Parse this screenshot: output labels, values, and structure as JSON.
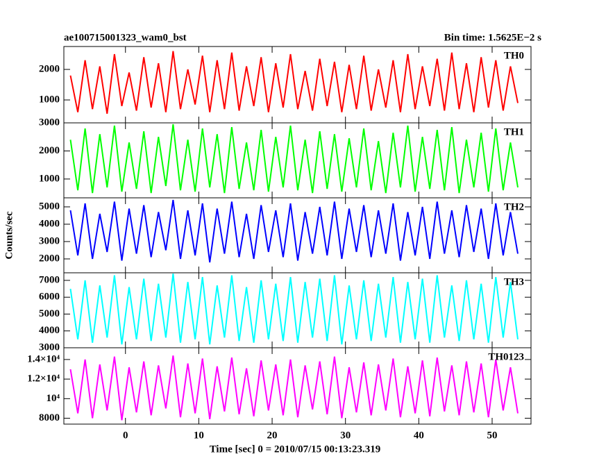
{
  "chart_data": {
    "type": "line",
    "title": "ae100715001323_wam0_bst",
    "subtitle": "Bin time: 1.5625E−2 s",
    "ylabel": "Counts/sec",
    "xlabel": "Time [sec] 0 = 2010/07/15 00:13:23.319",
    "xlim": [
      -8.4,
      55.3
    ],
    "xticks": [
      0,
      10,
      20,
      30,
      40,
      50
    ],
    "x": [
      -7.5,
      -6.5,
      -5.5,
      -4.5,
      -3.5,
      -2.5,
      -1.5,
      -0.5,
      0.5,
      1.5,
      2.5,
      3.5,
      4.5,
      5.5,
      6.5,
      7.5,
      8.5,
      9.5,
      10.5,
      11.5,
      12.5,
      13.5,
      14.5,
      15.5,
      16.5,
      17.5,
      18.5,
      19.5,
      20.5,
      21.5,
      22.5,
      23.5,
      24.5,
      25.5,
      26.5,
      27.5,
      28.5,
      29.5,
      30.5,
      31.5,
      32.5,
      33.5,
      34.5,
      35.5,
      36.5,
      37.5,
      38.5,
      39.5,
      40.5,
      41.5,
      42.5,
      43.5,
      44.5,
      45.5,
      46.5,
      47.5,
      48.5,
      49.5,
      50.5,
      51.5,
      52.5,
      53.5
    ],
    "series": [
      {
        "name": "TH0",
        "color": "#ff0000",
        "ylim": [
          250,
          2750
        ],
        "yticks": [
          1000,
          2000
        ],
        "values": [
          1800,
          600,
          2300,
          700,
          2100,
          550,
          2500,
          800,
          1900,
          650,
          2400,
          750,
          2200,
          600,
          2600,
          700,
          2000,
          850,
          2450,
          600,
          2300,
          700,
          2550,
          650,
          2100,
          800,
          2400,
          600,
          2200,
          750,
          2500,
          700,
          1950,
          650,
          2350,
          800,
          2250,
          600,
          2150,
          700,
          2450,
          650,
          2000,
          750,
          2300,
          600,
          2500,
          700,
          2100,
          800,
          2350,
          650,
          2550,
          700,
          2200,
          600,
          2400,
          750,
          2300,
          650,
          2100,
          900
        ]
      },
      {
        "name": "TH1",
        "color": "#00ff00",
        "ylim": [
          330,
          3000
        ],
        "yticks": [
          1000,
          2000,
          3000
        ],
        "values": [
          2400,
          600,
          2800,
          500,
          2600,
          700,
          2900,
          550,
          2300,
          650,
          2700,
          500,
          2500,
          750,
          2950,
          600,
          2400,
          550,
          2800,
          700,
          2600,
          500,
          2850,
          650,
          2300,
          600,
          2750,
          550,
          2500,
          700,
          2900,
          600,
          2400,
          500,
          2700,
          650,
          2600,
          550,
          2450,
          700,
          2800,
          600,
          2350,
          500,
          2650,
          700,
          2900,
          550,
          2500,
          650,
          2750,
          600,
          2850,
          500,
          2400,
          700,
          2650,
          550,
          2800,
          600,
          2300,
          700
        ]
      },
      {
        "name": "TH2",
        "color": "#0000ff",
        "ylim": [
          1200,
          5520
        ],
        "yticks": [
          2000,
          3000,
          4000,
          5000
        ],
        "values": [
          4800,
          2200,
          5200,
          2000,
          4600,
          2400,
          5300,
          1900,
          4900,
          2300,
          5100,
          2100,
          4700,
          2500,
          5400,
          2000,
          4800,
          2200,
          5200,
          1800,
          4900,
          2300,
          5300,
          2100,
          4600,
          2000,
          5100,
          2400,
          4800,
          2100,
          5200,
          1900,
          4700,
          2300,
          5000,
          2200,
          5300,
          2000,
          4900,
          2400,
          5100,
          2100,
          4800,
          2300,
          5200,
          1900,
          4700,
          2200,
          5000,
          2000,
          5300,
          2300,
          4800,
          2100,
          5100,
          2400,
          4900,
          2000,
          5200,
          2200,
          4700,
          2300
        ]
      },
      {
        "name": "TH3",
        "color": "#00ffff",
        "ylim": [
          3000,
          7450
        ],
        "yticks": [
          3000,
          4000,
          5000,
          6000,
          7000
        ],
        "values": [
          6500,
          3500,
          7000,
          3300,
          6700,
          3600,
          7300,
          3200,
          6600,
          3500,
          7100,
          3400,
          6800,
          3600,
          7400,
          3300,
          6900,
          3500,
          7200,
          3200,
          6700,
          3600,
          7300,
          3400,
          6600,
          3300,
          7000,
          3500,
          6800,
          3400,
          7200,
          3300,
          6900,
          3600,
          7100,
          3400,
          7300,
          3200,
          6700,
          3500,
          7000,
          3400,
          6800,
          3600,
          7200,
          3300,
          6900,
          3500,
          7100,
          3300,
          7300,
          3600,
          6700,
          3400,
          7000,
          3500,
          6800,
          3300,
          7200,
          3600,
          6900,
          3500
        ]
      },
      {
        "name": "TH0123",
        "color": "#ff00ff",
        "ylim": [
          7400,
          15200
        ],
        "yticks": [
          8000,
          {
            "value": 10000,
            "label": "10⁴"
          },
          {
            "value": 12000,
            "label": "1.2×10⁴"
          },
          {
            "value": 14000,
            "label": "1.4×10⁴"
          }
        ],
        "values": [
          13000,
          8500,
          14000,
          8000,
          13500,
          8800,
          14300,
          7800,
          13200,
          8600,
          13800,
          8300,
          13400,
          9000,
          14400,
          8100,
          13600,
          8500,
          14100,
          7900,
          13300,
          8700,
          14200,
          8400,
          13100,
          8200,
          13900,
          8800,
          13500,
          8300,
          14000,
          8100,
          13400,
          8900,
          13800,
          8400,
          14300,
          8000,
          13200,
          8600,
          13700,
          8300,
          13500,
          8800,
          14100,
          8100,
          13300,
          8500,
          13900,
          8200,
          14200,
          8700,
          13400,
          8300,
          13800,
          8600,
          13600,
          8100,
          14000,
          8800,
          13200,
          8500
        ]
      }
    ]
  }
}
